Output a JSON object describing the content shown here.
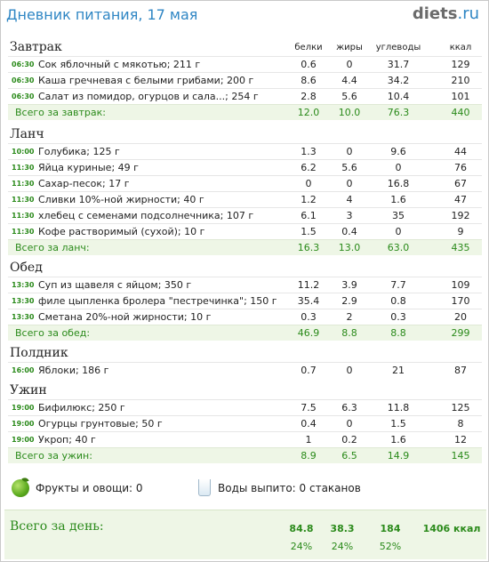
{
  "header": {
    "title": "Дневник питания, 17 мая",
    "logo_name": "diets",
    "logo_dot": ".",
    "logo_tld": "ru"
  },
  "columns": {
    "protein": "белки",
    "fat": "жиры",
    "carbs": "углеводы",
    "kcal": "ккал"
  },
  "meals": [
    {
      "title": "Завтрак",
      "items": [
        {
          "time": "06:30",
          "name": "Сок яблочный с мякотью; 211 г",
          "p": "0.6",
          "f": "0",
          "c": "31.7",
          "k": "129"
        },
        {
          "time": "06:30",
          "name": "Каша гречневая с белыми грибами; 200 г",
          "p": "8.6",
          "f": "4.4",
          "c": "34.2",
          "k": "210"
        },
        {
          "time": "06:30",
          "name": "Салат из помидор, огурцов  и сала...; 254 г",
          "p": "2.8",
          "f": "5.6",
          "c": "10.4",
          "k": "101"
        }
      ],
      "total": {
        "label": "Всего за завтрак:",
        "p": "12.0",
        "f": "10.0",
        "c": "76.3",
        "k": "440"
      }
    },
    {
      "title": "Ланч",
      "items": [
        {
          "time": "10:00",
          "name": "Голубика; 125 г",
          "p": "1.3",
          "f": "0",
          "c": "9.6",
          "k": "44"
        },
        {
          "time": "11:30",
          "name": "Яйца куриные; 49 г",
          "p": "6.2",
          "f": "5.6",
          "c": "0",
          "k": "76"
        },
        {
          "time": "11:30",
          "name": "Сахар-песок; 17 г",
          "p": "0",
          "f": "0",
          "c": "16.8",
          "k": "67"
        },
        {
          "time": "11:30",
          "name": "Сливки 10%-ной жирности; 40 г",
          "p": "1.2",
          "f": "4",
          "c": "1.6",
          "k": "47"
        },
        {
          "time": "11:30",
          "name": "хлебец с семенами подсолнечника; 107 г",
          "p": "6.1",
          "f": "3",
          "c": "35",
          "k": "192"
        },
        {
          "time": "11:30",
          "name": "Кофе растворимый (сухой); 10 г",
          "p": "1.5",
          "f": "0.4",
          "c": "0",
          "k": "9"
        }
      ],
      "total": {
        "label": "Всего за ланч:",
        "p": "16.3",
        "f": "13.0",
        "c": "63.0",
        "k": "435"
      }
    },
    {
      "title": "Обед",
      "items": [
        {
          "time": "13:30",
          "name": "Суп из щавеля с яйцом; 350 г",
          "p": "11.2",
          "f": "3.9",
          "c": "7.7",
          "k": "109"
        },
        {
          "time": "13:30",
          "name": "филе цыпленка бролера \"пестречинка\"; 150 г",
          "p": "35.4",
          "f": "2.9",
          "c": "0.8",
          "k": "170"
        },
        {
          "time": "13:30",
          "name": "Сметана 20%-ной жирности; 10 г",
          "p": "0.3",
          "f": "2",
          "c": "0.3",
          "k": "20"
        }
      ],
      "total": {
        "label": "Всего за обед:",
        "p": "46.9",
        "f": "8.8",
        "c": "8.8",
        "k": "299"
      }
    },
    {
      "title": "Полдник",
      "items": [
        {
          "time": "16:00",
          "name": "Яблоки; 186 г",
          "p": "0.7",
          "f": "0",
          "c": "21",
          "k": "87"
        }
      ],
      "total": null
    },
    {
      "title": "Ужин",
      "items": [
        {
          "time": "19:00",
          "name": "Бифилюкс; 250 г",
          "p": "7.5",
          "f": "6.3",
          "c": "11.8",
          "k": "125"
        },
        {
          "time": "19:00",
          "name": "Огурцы грунтовые; 50 г",
          "p": "0.4",
          "f": "0",
          "c": "1.5",
          "k": "8"
        },
        {
          "time": "19:00",
          "name": "Укроп; 40 г",
          "p": "1",
          "f": "0.2",
          "c": "1.6",
          "k": "12"
        }
      ],
      "total": {
        "label": "Всего за ужин:",
        "p": "8.9",
        "f": "6.5",
        "c": "14.9",
        "k": "145"
      }
    }
  ],
  "extras": {
    "fruits_label": "Фрукты и овощи: 0",
    "water_label": "Воды выпито: 0 стаканов",
    "fruits_icon": "apple-icon",
    "water_icon": "glass-icon"
  },
  "day_total": {
    "label": "Всего за день:",
    "p": "84.8",
    "f": "38.3",
    "c": "184",
    "k": "1406 ккал",
    "p_pct": "24%",
    "f_pct": "24%",
    "c_pct": "52%"
  },
  "colors": {
    "accent_blue": "#2f86c4",
    "accent_green": "#2a8a1a",
    "total_bg": "#eef6e6"
  }
}
